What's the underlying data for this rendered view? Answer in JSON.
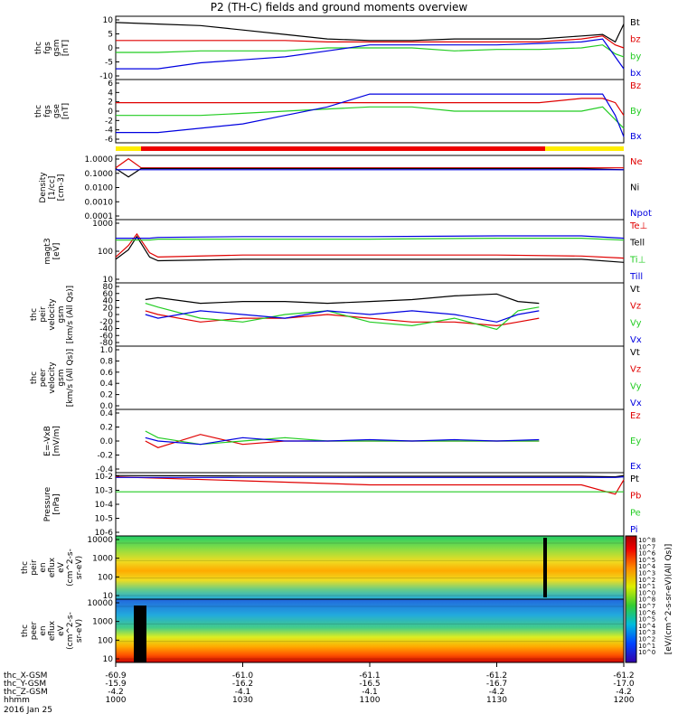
{
  "title": "P2 (TH-C) fields and ground moments overview",
  "colors": {
    "black": "#000000",
    "red": "#e00000",
    "green": "#22cc22",
    "blue": "#0000e0",
    "yellow": "#ffee00",
    "bar_red": "#ee0000"
  },
  "chart_data": [
    {
      "type": "line",
      "id": "fgs",
      "ylabel_lines": [
        "thc",
        "fgs",
        "gsm",
        "[nT]"
      ],
      "yticks": [
        "10",
        "5",
        "0",
        "-5",
        "-10"
      ],
      "ylim": [
        -10,
        10
      ],
      "series": [
        {
          "name": "Bt",
          "color": "black",
          "x": [
            1000,
            1010,
            1020,
            1030,
            1040,
            1050,
            1100,
            1110,
            1120,
            1130,
            1140,
            1150,
            1155,
            1158,
            1200
          ],
          "y": [
            8.5,
            8,
            7.5,
            6,
            4.5,
            3,
            2.5,
            2.5,
            3,
            3,
            3,
            4,
            4.5,
            2,
            8
          ]
        },
        {
          "name": "bz",
          "color": "red",
          "x": [
            1000,
            1010,
            1020,
            1030,
            1040,
            1050,
            1100,
            1110,
            1120,
            1130,
            1140,
            1150,
            1155,
            1158,
            1200
          ],
          "y": [
            2.5,
            2.5,
            2.5,
            2.5,
            2.5,
            2,
            2,
            2,
            2,
            2,
            2,
            3,
            4,
            1,
            0
          ]
        },
        {
          "name": "by",
          "color": "green",
          "x": [
            1000,
            1010,
            1020,
            1030,
            1040,
            1050,
            1100,
            1110,
            1120,
            1130,
            1140,
            1150,
            1155,
            1158,
            1200
          ],
          "y": [
            -1.5,
            -1.5,
            -1,
            -1,
            -1,
            0,
            0,
            0,
            -1,
            -0.5,
            -0.5,
            0,
            1,
            -2,
            -3
          ]
        },
        {
          "name": "bx",
          "color": "blue",
          "x": [
            1000,
            1010,
            1020,
            1030,
            1040,
            1050,
            1100,
            1110,
            1120,
            1130,
            1140,
            1150,
            1155,
            1158,
            1200
          ],
          "y": [
            -7,
            -7,
            -5,
            -4,
            -3,
            -1,
            1,
            1,
            1,
            1,
            1.5,
            2,
            3,
            -3,
            -7
          ]
        }
      ]
    },
    {
      "type": "line",
      "id": "fgs_gse",
      "ylabel_lines": [
        "thc",
        "fgs",
        "gse",
        "[nT]"
      ],
      "yticks": [
        "6",
        "4",
        "2",
        "0",
        "-2",
        "-4",
        "-6"
      ],
      "ylim": [
        -7,
        7
      ],
      "series": [
        {
          "name": "Bz",
          "color": "red",
          "x": [
            1000,
            1010,
            1020,
            1030,
            1040,
            1050,
            1100,
            1110,
            1120,
            1130,
            1140,
            1150,
            1155,
            1158,
            1200
          ],
          "y": [
            2,
            2,
            2,
            2,
            2,
            2,
            2,
            2,
            2,
            2,
            2,
            3,
            3,
            2,
            -1
          ]
        },
        {
          "name": "By",
          "color": "green",
          "x": [
            1000,
            1010,
            1020,
            1030,
            1040,
            1050,
            1100,
            1110,
            1120,
            1130,
            1140,
            1150,
            1155,
            1158,
            1200
          ],
          "y": [
            -1,
            -1,
            -1,
            -0.5,
            0,
            0.5,
            1,
            1,
            0,
            0,
            0,
            0,
            1,
            -2,
            -4
          ]
        },
        {
          "name": "Bx",
          "color": "blue",
          "x": [
            1000,
            1010,
            1020,
            1030,
            1040,
            1050,
            1100,
            1110,
            1120,
            1130,
            1140,
            1150,
            1155,
            1158,
            1200
          ],
          "y": [
            -5,
            -5,
            -4,
            -3,
            -1,
            1,
            4,
            4,
            4,
            4,
            4,
            4,
            4,
            -1,
            -6
          ]
        }
      ]
    },
    {
      "type": "line",
      "id": "density",
      "scale": "log",
      "ylabel_lines": [
        "Density",
        "[1/cc]",
        "[cm-3]"
      ],
      "yticks": [
        "1.0000",
        "0.1000",
        "0.0100",
        "0.0010",
        "0.0001"
      ],
      "ylim": [
        0.0001,
        1
      ],
      "series": [
        {
          "name": "Ne",
          "color": "red",
          "x": [
            1000,
            1003,
            1006,
            1008,
            1010,
            1030,
            1100,
            1130,
            1150,
            1200
          ],
          "y": [
            0.2,
            0.8,
            0.2,
            0.2,
            0.2,
            0.2,
            0.2,
            0.2,
            0.2,
            0.2
          ]
        },
        {
          "name": "Ni",
          "color": "black",
          "x": [
            1000,
            1003,
            1006,
            1008,
            1010,
            1030,
            1100,
            1130,
            1150,
            1200
          ],
          "y": [
            0.18,
            0.05,
            0.18,
            0.18,
            0.18,
            0.18,
            0.18,
            0.18,
            0.18,
            0.15
          ]
        },
        {
          "name": "Npot",
          "color": "blue",
          "x": [
            1000,
            1003,
            1006,
            1008,
            1010,
            1030,
            1100,
            1130,
            1150,
            1200
          ],
          "y": [
            0.15,
            0.15,
            0.15,
            0.15,
            0.15,
            0.15,
            0.15,
            0.15,
            0.15,
            0.15
          ]
        }
      ]
    },
    {
      "type": "line",
      "id": "temp",
      "scale": "log",
      "ylabel_lines": [
        "magt3",
        "[eV]"
      ],
      "yticks": [
        "1000",
        "100",
        "10"
      ],
      "ylim": [
        10,
        3000
      ],
      "series": [
        {
          "name": "Te⊥",
          "color": "red",
          "x": [
            1000,
            1003,
            1005,
            1008,
            1010,
            1030,
            1100,
            1130,
            1150,
            1200
          ],
          "y": [
            100,
            300,
            900,
            150,
            100,
            120,
            120,
            120,
            110,
            90
          ]
        },
        {
          "name": "Tell",
          "color": "black",
          "x": [
            1000,
            1003,
            1005,
            1008,
            1010,
            1030,
            1100,
            1130,
            1150,
            1200
          ],
          "y": [
            80,
            200,
            700,
            100,
            70,
            80,
            80,
            80,
            80,
            60
          ]
        },
        {
          "name": "Ti⊥",
          "color": "green",
          "x": [
            1000,
            1003,
            1005,
            1008,
            1010,
            1030,
            1100,
            1130,
            1150,
            1200
          ],
          "y": [
            500,
            500,
            500,
            500,
            550,
            550,
            550,
            600,
            600,
            500
          ]
        },
        {
          "name": "Till",
          "color": "blue",
          "x": [
            1000,
            1003,
            1005,
            1008,
            1010,
            1030,
            1100,
            1130,
            1150,
            1200
          ],
          "y": [
            600,
            600,
            600,
            600,
            650,
            700,
            700,
            750,
            750,
            600
          ]
        }
      ]
    },
    {
      "type": "line",
      "id": "ion_vel",
      "ylabel_lines": [
        "thc",
        "peir",
        "velocity",
        "gsm",
        "[km/s (All Qs)]"
      ],
      "yticks": [
        "80",
        "60",
        "40",
        "20",
        "0",
        "-20",
        "-40",
        "-60",
        "-80"
      ],
      "ylim": [
        -80,
        80
      ],
      "series": [
        {
          "name": "Vt",
          "color": "black",
          "x": [
            1007,
            1010,
            1020,
            1030,
            1040,
            1050,
            1100,
            1110,
            1120,
            1130,
            1135,
            1140
          ],
          "y": [
            40,
            45,
            30,
            35,
            35,
            30,
            35,
            40,
            50,
            55,
            35,
            30
          ]
        },
        {
          "name": "Vz",
          "color": "red",
          "x": [
            1007,
            1010,
            1020,
            1030,
            1040,
            1050,
            1100,
            1110,
            1120,
            1130,
            1135,
            1140
          ],
          "y": [
            10,
            0,
            -20,
            -10,
            -10,
            0,
            -10,
            -20,
            -20,
            -30,
            -20,
            -10
          ]
        },
        {
          "name": "Vy",
          "color": "green",
          "x": [
            1007,
            1010,
            1020,
            1030,
            1040,
            1050,
            1100,
            1110,
            1120,
            1130,
            1135,
            1140
          ],
          "y": [
            30,
            20,
            -10,
            -20,
            0,
            10,
            -20,
            -30,
            -10,
            -40,
            10,
            20
          ]
        },
        {
          "name": "Vx",
          "color": "blue",
          "x": [
            1007,
            1010,
            1020,
            1030,
            1040,
            1050,
            1100,
            1110,
            1120,
            1130,
            1135,
            1140
          ],
          "y": [
            0,
            -10,
            10,
            0,
            -10,
            10,
            0,
            10,
            0,
            -20,
            0,
            10
          ]
        }
      ]
    },
    {
      "type": "line",
      "id": "elec_vel",
      "ylabel_lines": [
        "thc",
        "peer",
        "velocity",
        "gsm",
        "[km/s (All Qs)]"
      ],
      "yticks": [
        "1.0",
        "0.8",
        "0.6",
        "0.4",
        "0.2",
        "0.0"
      ],
      "ylim": [
        0,
        1
      ],
      "series": [
        {
          "name": "Vt",
          "color": "black",
          "x": [],
          "y": []
        },
        {
          "name": "Vz",
          "color": "red",
          "x": [],
          "y": []
        },
        {
          "name": "Vy",
          "color": "green",
          "x": [],
          "y": []
        },
        {
          "name": "Vx",
          "color": "blue",
          "x": [],
          "y": []
        }
      ]
    },
    {
      "type": "line",
      "id": "efield",
      "ylabel_lines": [
        "E=-VxB",
        "[mV/m]"
      ],
      "yticks": [
        "0.4",
        "0.2",
        "0.0",
        "-0.2",
        "-0.4"
      ],
      "ylim": [
        -0.45,
        0.45
      ],
      "series": [
        {
          "name": "Ez",
          "color": "red",
          "x": [
            1007,
            1010,
            1020,
            1030,
            1040,
            1050,
            1100,
            1110,
            1120,
            1130,
            1140
          ],
          "y": [
            0,
            -0.1,
            0.1,
            -0.05,
            0,
            0,
            0,
            0,
            0,
            0,
            0
          ]
        },
        {
          "name": "Ey",
          "color": "green",
          "x": [
            1007,
            1010,
            1020,
            1030,
            1040,
            1050,
            1100,
            1110,
            1120,
            1130,
            1140
          ],
          "y": [
            0.15,
            0.05,
            -0.05,
            0,
            0.05,
            0,
            0,
            0,
            0,
            0,
            0
          ]
        },
        {
          "name": "Ex",
          "color": "blue",
          "x": [
            1007,
            1010,
            1020,
            1030,
            1040,
            1050,
            1100,
            1110,
            1120,
            1130,
            1140
          ],
          "y": [
            0.05,
            0,
            -0.05,
            0.05,
            0,
            0,
            0.02,
            0,
            0.02,
            0,
            0.02
          ]
        }
      ]
    },
    {
      "type": "line",
      "id": "pressure",
      "scale": "log",
      "ylabel_lines": [
        "Pressure",
        "[nPa]"
      ],
      "yticks": [
        "10-2",
        "10-3",
        "10-4",
        "10-5",
        "10-6"
      ],
      "ylim": [
        1e-06,
        0.03
      ],
      "series": [
        {
          "name": "Pt",
          "color": "black",
          "x": [
            1000,
            1030,
            1100,
            1130,
            1150,
            1158,
            1200
          ],
          "y": [
            0.025,
            0.023,
            0.022,
            0.022,
            0.022,
            0.02,
            0.025
          ]
        },
        {
          "name": "Pb",
          "color": "red",
          "x": [
            1000,
            1030,
            1100,
            1130,
            1150,
            1158,
            1200
          ],
          "y": [
            0.02,
            0.01,
            0.005,
            0.005,
            0.005,
            0.001,
            0.012
          ]
        },
        {
          "name": "Pe",
          "color": "green",
          "x": [
            1000,
            1030,
            1100,
            1130,
            1150,
            1158,
            1200
          ],
          "y": [
            0.0015,
            0.0015,
            0.0015,
            0.0015,
            0.0015,
            0.0015,
            0.0015
          ]
        },
        {
          "name": "Pi",
          "color": "blue",
          "x": [
            1000,
            1030,
            1100,
            1130,
            1150,
            1158,
            1200
          ],
          "y": [
            0.018,
            0.018,
            0.018,
            0.018,
            0.018,
            0.018,
            0.02
          ]
        }
      ]
    },
    {
      "type": "heatmap",
      "id": "ion_spec",
      "ylabel_lines": [
        "thc",
        "peir",
        "en",
        "eflux",
        "eV",
        "(cm^2-s-",
        "sr-eV)"
      ],
      "yticks": [
        "10000",
        "1000",
        "100",
        "10"
      ]
    },
    {
      "type": "heatmap",
      "id": "elec_spec",
      "ylabel_lines": [
        "thc",
        "peer",
        "en",
        "eflux",
        "eV",
        "(cm^2-s-",
        "sr-eV)"
      ],
      "yticks": [
        "10000",
        "1000",
        "100",
        "10"
      ]
    }
  ],
  "colorbar": {
    "labels": [
      "10^8",
      "10^7",
      "10^6",
      "10^5",
      "10^4",
      "10^3",
      "10^2",
      "10^1",
      "10^0",
      "10^8",
      "10^7",
      "10^6",
      "10^5",
      "10^4",
      "10^3",
      "10^2",
      "10^1",
      "10^0"
    ],
    "units": "[eV/(cm^2-s-sr-eV)(All Qs)]"
  },
  "xaxis": {
    "rows": [
      {
        "label": "thc_X-GSM",
        "values": [
          "-60.9",
          "-61.0",
          "-61.1",
          "-61.2",
          "-61.2"
        ]
      },
      {
        "label": "thc_Y-GSM",
        "values": [
          "-15.9",
          "-16.2",
          "-16.5",
          "-16.7",
          "-17.0"
        ]
      },
      {
        "label": "thc_Z-GSM",
        "values": [
          "-4.2",
          "-4.1",
          "-4.1",
          "-4.2",
          "-4.2"
        ]
      },
      {
        "label": "hhmm",
        "values": [
          "1000",
          "1030",
          "1100",
          "1130",
          "1200"
        ]
      }
    ],
    "date": "2016 Jan 25"
  }
}
